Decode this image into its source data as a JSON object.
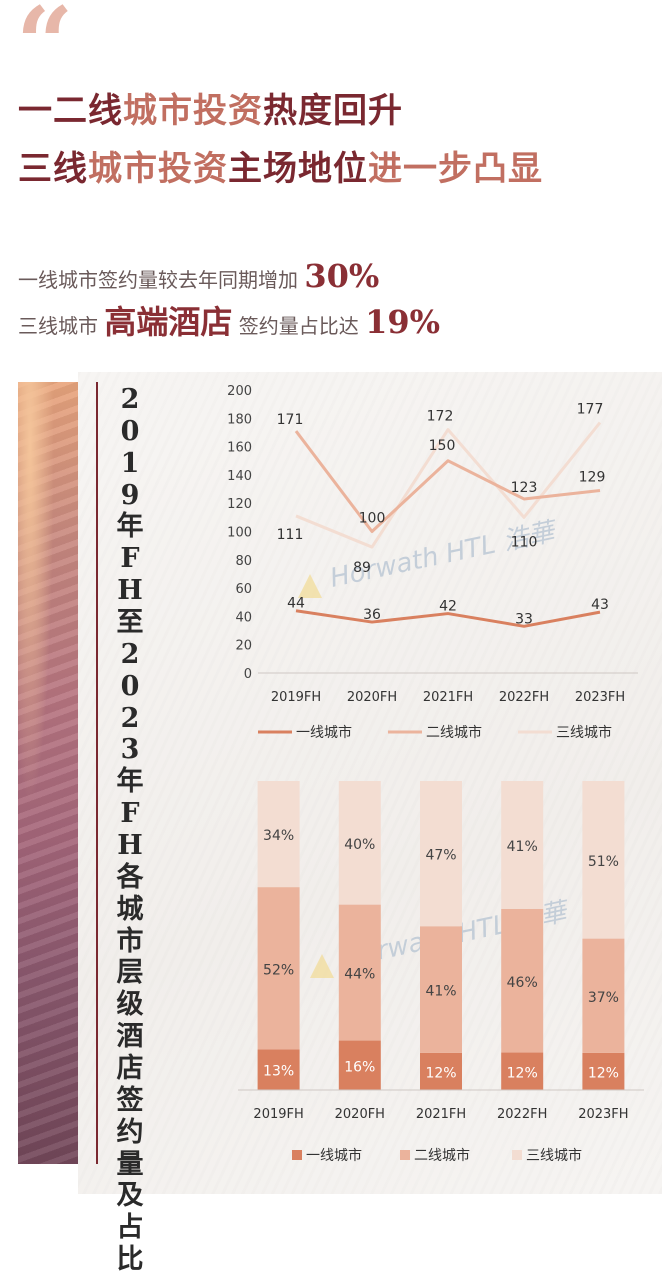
{
  "headline": {
    "line1": [
      {
        "text": "一二线",
        "style": "dark"
      },
      {
        "text": "城市投资",
        "style": "light"
      },
      {
        "text": "热度回升",
        "style": "dark"
      }
    ],
    "line2": [
      {
        "text": "三线",
        "style": "dark"
      },
      {
        "text": "城市投资",
        "style": "light"
      },
      {
        "text": "主场地位",
        "style": "dark"
      },
      {
        "text": "进一步凸显",
        "style": "light"
      }
    ]
  },
  "summary": {
    "line1_text": "一线城市签约量较去年同期增加",
    "line1_pct": "30%",
    "line2_prefix": "三线城市",
    "line2_highlight": "高端酒店",
    "line2_text": "签约量占比达",
    "line2_pct": "19%"
  },
  "side_title": "2019年FH至2023年FH各城市层级酒店签约量及占比",
  "watermark": "Horwath HTL 浩華",
  "colors": {
    "tier1": "#d9805f",
    "tier2": "#ebb39c",
    "tier3": "#f3ddd2",
    "title_dark": "#7a2830",
    "title_light": "#c16f61"
  },
  "chart_data": [
    {
      "type": "line",
      "categories": [
        "2019FH",
        "2020FH",
        "2021FH",
        "2022FH",
        "2023FH"
      ],
      "series": [
        {
          "name": "一线城市",
          "values": [
            44,
            36,
            42,
            33,
            43
          ]
        },
        {
          "name": "二线城市",
          "values": [
            171,
            100,
            150,
            123,
            129
          ]
        },
        {
          "name": "三线城市",
          "values": [
            111,
            89,
            172,
            110,
            177
          ]
        }
      ],
      "ylim": [
        0,
        200
      ],
      "yticks": [
        0,
        20,
        40,
        60,
        80,
        100,
        120,
        140,
        160,
        180,
        200
      ],
      "legend": "bottom",
      "grid": false
    },
    {
      "type": "bar",
      "stacked": true,
      "categories": [
        "2019FH",
        "2020FH",
        "2021FH",
        "2022FH",
        "2023FH"
      ],
      "series": [
        {
          "name": "一线城市",
          "values": [
            13,
            16,
            12,
            12,
            12
          ]
        },
        {
          "name": "二线城市",
          "values": [
            52,
            44,
            41,
            46,
            37
          ]
        },
        {
          "name": "三线城市",
          "values": [
            34,
            40,
            47,
            41,
            51
          ]
        }
      ],
      "value_suffix": "%",
      "legend": "bottom"
    }
  ]
}
